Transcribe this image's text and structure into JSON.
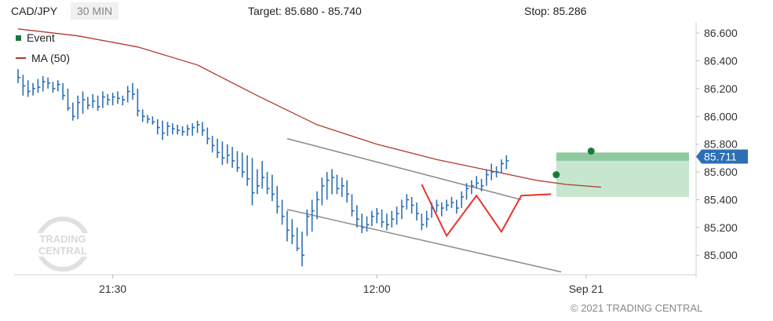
{
  "header": {
    "symbol": "CAD/JPY",
    "timeframe": "30 MIN",
    "target": "Target: 85.680 - 85.740",
    "stop": "Stop: 85.286"
  },
  "legend": {
    "event_label": "Event",
    "ma_label": "MA (50)",
    "event_color": "#1a7a3c",
    "ma_color": "#b03a2e"
  },
  "watermark": {
    "line1": "TRADING",
    "line2": "CENTRAL"
  },
  "copyright": "© 2021 TRADING CENTRAL",
  "colors": {
    "bars": "#2d6fb5",
    "ma": "#b03a2e",
    "channel": "#8c8c8c",
    "pattern": "#e8332b",
    "target_zone": "#8fca9f",
    "target_zone_light": "#c6e6cf",
    "event": "#1a7a3c",
    "price_tag": "#2d6fb5"
  },
  "chart_data": {
    "type": "ohlc",
    "ylim": [
      84.86,
      86.68
    ],
    "yticks": [
      85.0,
      85.2,
      85.4,
      85.6,
      85.8,
      86.0,
      86.2,
      86.4,
      86.6
    ],
    "ytick_labels": [
      "85.000",
      "85.200",
      "85.400",
      "85.600",
      "85.800",
      "86.000",
      "86.200",
      "86.400",
      "86.600"
    ],
    "x_range": [
      0,
      122
    ],
    "xticks": [
      {
        "index": 19,
        "label": "21:30"
      },
      {
        "index": 72,
        "label": "12:00"
      },
      {
        "index": 114,
        "label": "Sep 21"
      }
    ],
    "last_price": 85.711,
    "last_price_label": "85.711",
    "bars": [
      {
        "h": 86.34,
        "l": 86.24,
        "c": 86.28
      },
      {
        "h": 86.3,
        "l": 86.15,
        "c": 86.22
      },
      {
        "h": 86.26,
        "l": 86.14,
        "c": 86.18
      },
      {
        "h": 86.24,
        "l": 86.15,
        "c": 86.2
      },
      {
        "h": 86.27,
        "l": 86.17,
        "c": 86.21
      },
      {
        "h": 86.29,
        "l": 86.18,
        "c": 86.25
      },
      {
        "h": 86.28,
        "l": 86.2,
        "c": 86.24
      },
      {
        "h": 86.25,
        "l": 86.17,
        "c": 86.2
      },
      {
        "h": 86.26,
        "l": 86.18,
        "c": 86.23
      },
      {
        "h": 86.24,
        "l": 86.12,
        "c": 86.15
      },
      {
        "h": 86.2,
        "l": 86.04,
        "c": 86.06
      },
      {
        "h": 86.1,
        "l": 85.97,
        "c": 86.0
      },
      {
        "h": 86.15,
        "l": 85.98,
        "c": 86.1
      },
      {
        "h": 86.18,
        "l": 86.02,
        "c": 86.12
      },
      {
        "h": 86.14,
        "l": 86.05,
        "c": 86.08
      },
      {
        "h": 86.16,
        "l": 86.06,
        "c": 86.11
      },
      {
        "h": 86.15,
        "l": 86.04,
        "c": 86.07
      },
      {
        "h": 86.18,
        "l": 86.06,
        "c": 86.14
      },
      {
        "h": 86.16,
        "l": 86.08,
        "c": 86.12
      },
      {
        "h": 86.17,
        "l": 86.08,
        "c": 86.14
      },
      {
        "h": 86.18,
        "l": 86.09,
        "c": 86.13
      },
      {
        "h": 86.15,
        "l": 86.08,
        "c": 86.12
      },
      {
        "h": 86.22,
        "l": 86.1,
        "c": 86.18
      },
      {
        "h": 86.24,
        "l": 86.12,
        "c": 86.16
      },
      {
        "h": 86.2,
        "l": 86.0,
        "c": 86.04
      },
      {
        "h": 86.05,
        "l": 85.96,
        "c": 86.0
      },
      {
        "h": 86.01,
        "l": 85.95,
        "c": 85.98
      },
      {
        "h": 86.0,
        "l": 85.94,
        "c": 85.96
      },
      {
        "h": 85.98,
        "l": 85.87,
        "c": 85.92
      },
      {
        "h": 85.97,
        "l": 85.83,
        "c": 85.88
      },
      {
        "h": 85.96,
        "l": 85.86,
        "c": 85.93
      },
      {
        "h": 85.95,
        "l": 85.87,
        "c": 85.91
      },
      {
        "h": 85.94,
        "l": 85.87,
        "c": 85.9
      },
      {
        "h": 85.93,
        "l": 85.86,
        "c": 85.89
      },
      {
        "h": 85.94,
        "l": 85.86,
        "c": 85.91
      },
      {
        "h": 85.95,
        "l": 85.86,
        "c": 85.92
      },
      {
        "h": 85.97,
        "l": 85.88,
        "c": 85.94
      },
      {
        "h": 85.96,
        "l": 85.86,
        "c": 85.9
      },
      {
        "h": 85.92,
        "l": 85.8,
        "c": 85.84
      },
      {
        "h": 85.86,
        "l": 85.74,
        "c": 85.79
      },
      {
        "h": 85.84,
        "l": 85.7,
        "c": 85.74
      },
      {
        "h": 85.82,
        "l": 85.65,
        "c": 85.7
      },
      {
        "h": 85.8,
        "l": 85.66,
        "c": 85.72
      },
      {
        "h": 85.78,
        "l": 85.63,
        "c": 85.68
      },
      {
        "h": 85.75,
        "l": 85.6,
        "c": 85.63
      },
      {
        "h": 85.74,
        "l": 85.56,
        "c": 85.6
      },
      {
        "h": 85.72,
        "l": 85.5,
        "c": 85.55
      },
      {
        "h": 85.7,
        "l": 85.36,
        "c": 85.45
      },
      {
        "h": 85.62,
        "l": 85.44,
        "c": 85.5
      },
      {
        "h": 85.68,
        "l": 85.48,
        "c": 85.56
      },
      {
        "h": 85.6,
        "l": 85.44,
        "c": 85.48
      },
      {
        "h": 85.58,
        "l": 85.39,
        "c": 85.44
      },
      {
        "h": 85.5,
        "l": 85.3,
        "c": 85.35
      },
      {
        "h": 85.4,
        "l": 85.22,
        "c": 85.28
      },
      {
        "h": 85.32,
        "l": 85.1,
        "c": 85.18
      },
      {
        "h": 85.26,
        "l": 85.08,
        "c": 85.14
      },
      {
        "h": 85.2,
        "l": 85.03,
        "c": 85.05
      },
      {
        "h": 85.17,
        "l": 84.92,
        "c": 85.0
      },
      {
        "h": 85.33,
        "l": 85.14,
        "c": 85.28
      },
      {
        "h": 85.4,
        "l": 85.17,
        "c": 85.32
      },
      {
        "h": 85.46,
        "l": 85.26,
        "c": 85.4
      },
      {
        "h": 85.56,
        "l": 85.36,
        "c": 85.5
      },
      {
        "h": 85.6,
        "l": 85.4,
        "c": 85.54
      },
      {
        "h": 85.62,
        "l": 85.44,
        "c": 85.56
      },
      {
        "h": 85.58,
        "l": 85.44,
        "c": 85.48
      },
      {
        "h": 85.56,
        "l": 85.42,
        "c": 85.5
      },
      {
        "h": 85.54,
        "l": 85.38,
        "c": 85.44
      },
      {
        "h": 85.44,
        "l": 85.28,
        "c": 85.32
      },
      {
        "h": 85.36,
        "l": 85.2,
        "c": 85.26
      },
      {
        "h": 85.3,
        "l": 85.16,
        "c": 85.2
      },
      {
        "h": 85.28,
        "l": 85.17,
        "c": 85.22
      },
      {
        "h": 85.32,
        "l": 85.21,
        "c": 85.28
      },
      {
        "h": 85.34,
        "l": 85.23,
        "c": 85.3
      },
      {
        "h": 85.33,
        "l": 85.2,
        "c": 85.24
      },
      {
        "h": 85.3,
        "l": 85.18,
        "c": 85.22
      },
      {
        "h": 85.32,
        "l": 85.2,
        "c": 85.26
      },
      {
        "h": 85.35,
        "l": 85.22,
        "c": 85.3
      },
      {
        "h": 85.4,
        "l": 85.26,
        "c": 85.35
      },
      {
        "h": 85.44,
        "l": 85.33,
        "c": 85.4
      },
      {
        "h": 85.42,
        "l": 85.3,
        "c": 85.36
      },
      {
        "h": 85.38,
        "l": 85.25,
        "c": 85.3
      },
      {
        "h": 85.3,
        "l": 85.18,
        "c": 85.22
      },
      {
        "h": 85.32,
        "l": 85.2,
        "c": 85.26
      },
      {
        "h": 85.38,
        "l": 85.27,
        "c": 85.34
      },
      {
        "h": 85.4,
        "l": 85.31,
        "c": 85.36
      },
      {
        "h": 85.38,
        "l": 85.28,
        "c": 85.34
      },
      {
        "h": 85.4,
        "l": 85.32,
        "c": 85.36
      },
      {
        "h": 85.42,
        "l": 85.34,
        "c": 85.38
      },
      {
        "h": 85.4,
        "l": 85.3,
        "c": 85.34
      },
      {
        "h": 85.46,
        "l": 85.34,
        "c": 85.42
      },
      {
        "h": 85.52,
        "l": 85.4,
        "c": 85.48
      },
      {
        "h": 85.54,
        "l": 85.44,
        "c": 85.5
      },
      {
        "h": 85.57,
        "l": 85.48,
        "c": 85.52
      },
      {
        "h": 85.55,
        "l": 85.46,
        "c": 85.5
      },
      {
        "h": 85.62,
        "l": 85.5,
        "c": 85.58
      },
      {
        "h": 85.66,
        "l": 85.54,
        "c": 85.6
      },
      {
        "h": 85.64,
        "l": 85.56,
        "c": 85.6
      },
      {
        "h": 85.69,
        "l": 85.59,
        "c": 85.66
      },
      {
        "h": 85.72,
        "l": 85.62,
        "c": 85.68
      }
    ],
    "ma50": [
      [
        0,
        86.63
      ],
      [
        12,
        86.58
      ],
      [
        24,
        86.5
      ],
      [
        36,
        86.37
      ],
      [
        48,
        86.15
      ],
      [
        60,
        85.94
      ],
      [
        72,
        85.8
      ],
      [
        84,
        85.69
      ],
      [
        96,
        85.6
      ],
      [
        104,
        85.54
      ],
      [
        110,
        85.51
      ],
      [
        117,
        85.49
      ]
    ],
    "channel_upper": [
      [
        54,
        85.84
      ],
      [
        101,
        85.4
      ]
    ],
    "channel_lower": [
      [
        54,
        85.33
      ],
      [
        109,
        84.88
      ]
    ],
    "pattern_path": [
      [
        81,
        85.51
      ],
      [
        86,
        85.14
      ],
      [
        92,
        85.43
      ],
      [
        97,
        85.17
      ],
      [
        101,
        85.43
      ],
      [
        107,
        85.44
      ]
    ],
    "events": [
      {
        "index": 108,
        "price": 85.58
      },
      {
        "index": 115,
        "price": 85.75
      }
    ],
    "target_zone": {
      "from_index": 108,
      "to_index": 136,
      "upper": [
        85.68,
        85.74
      ],
      "lower": 85.42
    }
  }
}
